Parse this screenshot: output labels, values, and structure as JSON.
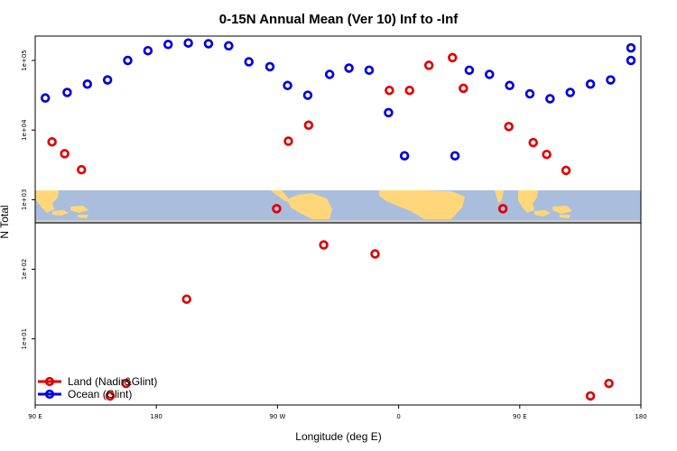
{
  "chart_data": {
    "type": "scatter",
    "title": "0-15N Annual Mean (Ver 10)   Inf to -Inf",
    "xlabel": "Longitude (deg E)",
    "ylabel": "N Total",
    "xlim": [
      0,
      360
    ],
    "xticks": [
      0,
      72,
      144,
      216,
      288,
      360
    ],
    "xtick_labels": [
      "90 E",
      "180",
      "90 W",
      "0",
      "90 E",
      "180"
    ],
    "ylim_log10": [
      0.05,
      5.35
    ],
    "yticks": [
      1,
      2,
      3,
      4,
      5
    ],
    "ytick_labels": [
      "1e+01",
      "1e+02",
      "1e+03",
      "1e+04",
      "1e+05"
    ],
    "map_strip": "continents",
    "legend": {
      "position": "bottom-left",
      "entries": [
        {
          "label": "Land (Nadir&Glint)",
          "color": "#e00000"
        },
        {
          "label": "Ocean (Glint)",
          "color": "#0000e0"
        }
      ]
    },
    "series": [
      {
        "name": "Land (Nadir&Glint)",
        "color": "#e00000",
        "points": [
          [
            10,
            3.83
          ],
          [
            17.5,
            3.66
          ],
          [
            27.5,
            3.43
          ],
          [
            44.5,
            0.18
          ],
          [
            54,
            0.36
          ],
          [
            90,
            1.57
          ],
          [
            143.5,
            2.87
          ],
          [
            150.5,
            3.84
          ],
          [
            162.5,
            4.07
          ],
          [
            171.5,
            2.35
          ],
          [
            202,
            2.22
          ],
          [
            210.5,
            4.57
          ],
          [
            222.5,
            4.57
          ],
          [
            234,
            4.93
          ],
          [
            248,
            5.04
          ],
          [
            254.5,
            4.6
          ],
          [
            278,
            2.87
          ],
          [
            281.5,
            4.05
          ],
          [
            296,
            3.82
          ],
          [
            304,
            3.65
          ],
          [
            315.5,
            3.42
          ],
          [
            330,
            0.18
          ],
          [
            341,
            0.36
          ]
        ]
      },
      {
        "name": "Ocean (Glint)",
        "color": "#0000e0",
        "points": [
          [
            6,
            4.46
          ],
          [
            19,
            4.54
          ],
          [
            31,
            4.66
          ],
          [
            43,
            4.72
          ],
          [
            55,
            5.0
          ],
          [
            67,
            5.14
          ],
          [
            79,
            5.23
          ],
          [
            91,
            5.25
          ],
          [
            103,
            5.24
          ],
          [
            115,
            5.21
          ],
          [
            127,
            4.98
          ],
          [
            139.5,
            4.91
          ],
          [
            150,
            4.64
          ],
          [
            162,
            4.5
          ],
          [
            175,
            4.8
          ],
          [
            186.5,
            4.89
          ],
          [
            198.5,
            4.86
          ],
          [
            210,
            4.25
          ],
          [
            219.5,
            3.63
          ],
          [
            249.5,
            3.63
          ],
          [
            258,
            4.86
          ],
          [
            270,
            4.8
          ],
          [
            282,
            4.64
          ],
          [
            294,
            4.52
          ],
          [
            306,
            4.45
          ],
          [
            318,
            4.54
          ],
          [
            330,
            4.66
          ],
          [
            342,
            4.72
          ],
          [
            355,
            5.0
          ],
          [
            366,
            5.18
          ]
        ]
      }
    ]
  }
}
